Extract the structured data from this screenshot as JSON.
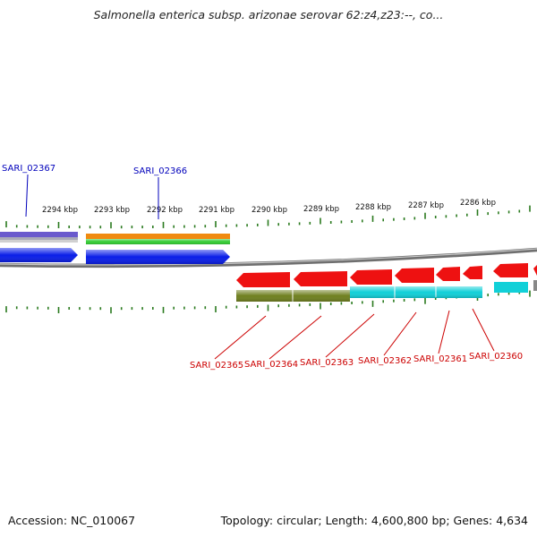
{
  "title": "Salmonella enterica subsp. arizonae serovar 62:z4,z23:--, co...",
  "footer": {
    "accession": "Accession: NC_010067",
    "summary": "Topology: circular; Length: 4,600,800 bp; Genes: 4,634"
  },
  "colors": {
    "plus_label": "#0000bb",
    "minus_label": "#cc0000",
    "tick": "#2a7a1e",
    "backbone": "#7a7a7a",
    "gene_blue": "#0a1ee8",
    "gene_red": "#ee1111",
    "gene_olive": "#6f7f1f",
    "gene_cyan": "#11d0d8",
    "gene_orange": "#f08a10",
    "gene_green": "#33cc33",
    "gene_purple": "#6a5acd"
  },
  "axis": {
    "unit": "kbp",
    "ticks": [
      {
        "kbp": 2294,
        "label": "2294 kbp"
      },
      {
        "kbp": 2293,
        "label": "2293 kbp"
      },
      {
        "kbp": 2292,
        "label": "2292 kbp"
      },
      {
        "kbp": 2291,
        "label": "2291 kbp"
      },
      {
        "kbp": 2290,
        "label": "2290 kbp"
      },
      {
        "kbp": 2289,
        "label": "2289 kbp"
      },
      {
        "kbp": 2288,
        "label": "2288 kbp"
      },
      {
        "kbp": 2287,
        "label": "2287 kbp"
      },
      {
        "kbp": 2286,
        "label": "2286 kbp"
      }
    ]
  },
  "genes_plus": [
    {
      "label": "SARI_02367"
    },
    {
      "label": "SARI_02366"
    }
  ],
  "genes_minus": [
    {
      "label": "SARI_02365"
    },
    {
      "label": "SARI_02364"
    },
    {
      "label": "SARI_02363"
    },
    {
      "label": "SARI_02362"
    },
    {
      "label": "SARI_02361"
    },
    {
      "label": "SARI_02360"
    }
  ]
}
